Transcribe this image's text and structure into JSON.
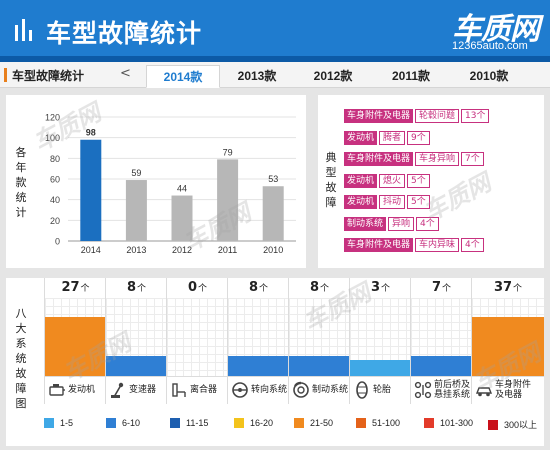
{
  "header": {
    "title": "车型故障统计",
    "logo_text": "车质网",
    "logo_url": "12365auto.com",
    "bg_color": "#1f7ccf"
  },
  "tabs": {
    "caption": "车型故障统计",
    "prev": "<",
    "items": [
      "2014款",
      "2013款",
      "2012款",
      "2011款",
      "2010款"
    ],
    "active_index": 0
  },
  "chart_data": [
    {
      "type": "bar",
      "ylabel": "各年款统计",
      "categories": [
        "2014",
        "2013",
        "2012",
        "2011",
        "2010"
      ],
      "values": [
        98,
        59,
        44,
        79,
        53
      ],
      "ylim": [
        0,
        120
      ],
      "yticks": [
        0,
        20,
        40,
        60,
        80,
        100,
        120
      ],
      "grid": true,
      "colors": {
        "highlight": "#1b6fc0",
        "normal": "#b7b7b7"
      }
    },
    {
      "type": "bar",
      "ylabel": "八大系统故障图",
      "categories": [
        "发动机",
        "变速器",
        "离合器",
        "转向系统",
        "制动系统",
        "轮胎",
        "前后桥及悬挂系统",
        "车身附件及电器"
      ],
      "values": [
        27,
        8,
        0,
        8,
        8,
        3,
        7,
        37
      ],
      "unit": "个",
      "legend": [
        {
          "label": "1-5",
          "color": "#3fa8e6"
        },
        {
          "label": "6-10",
          "color": "#2f7fd4"
        },
        {
          "label": "11-15",
          "color": "#1e5fb0"
        },
        {
          "label": "16-20",
          "color": "#f3c31c"
        },
        {
          "label": "21-50",
          "color": "#f08a1f"
        },
        {
          "label": "51-100",
          "color": "#e4621a"
        },
        {
          "label": "101-300",
          "color": "#e33b2a"
        },
        {
          "label": "300以上",
          "color": "#c9101a"
        }
      ]
    }
  ],
  "faults": {
    "label": "典型故障",
    "unit": "个",
    "items": [
      {
        "system": "车身附件及电器",
        "issue": "轮毂问题",
        "count": 13
      },
      {
        "system": "发动机",
        "issue": "腾者",
        "count": 9
      },
      {
        "system": "车身附件及电器",
        "issue": "车身异响",
        "count": 7
      },
      {
        "system": "发动机",
        "issue": "熄火",
        "count": 5
      },
      {
        "system": "发动机",
        "issue": "抖动",
        "count": 5
      },
      {
        "system": "制动系统",
        "issue": "异响",
        "count": 4
      },
      {
        "system": "车身附件及电器",
        "issue": "车内异味",
        "count": 4
      }
    ]
  }
}
